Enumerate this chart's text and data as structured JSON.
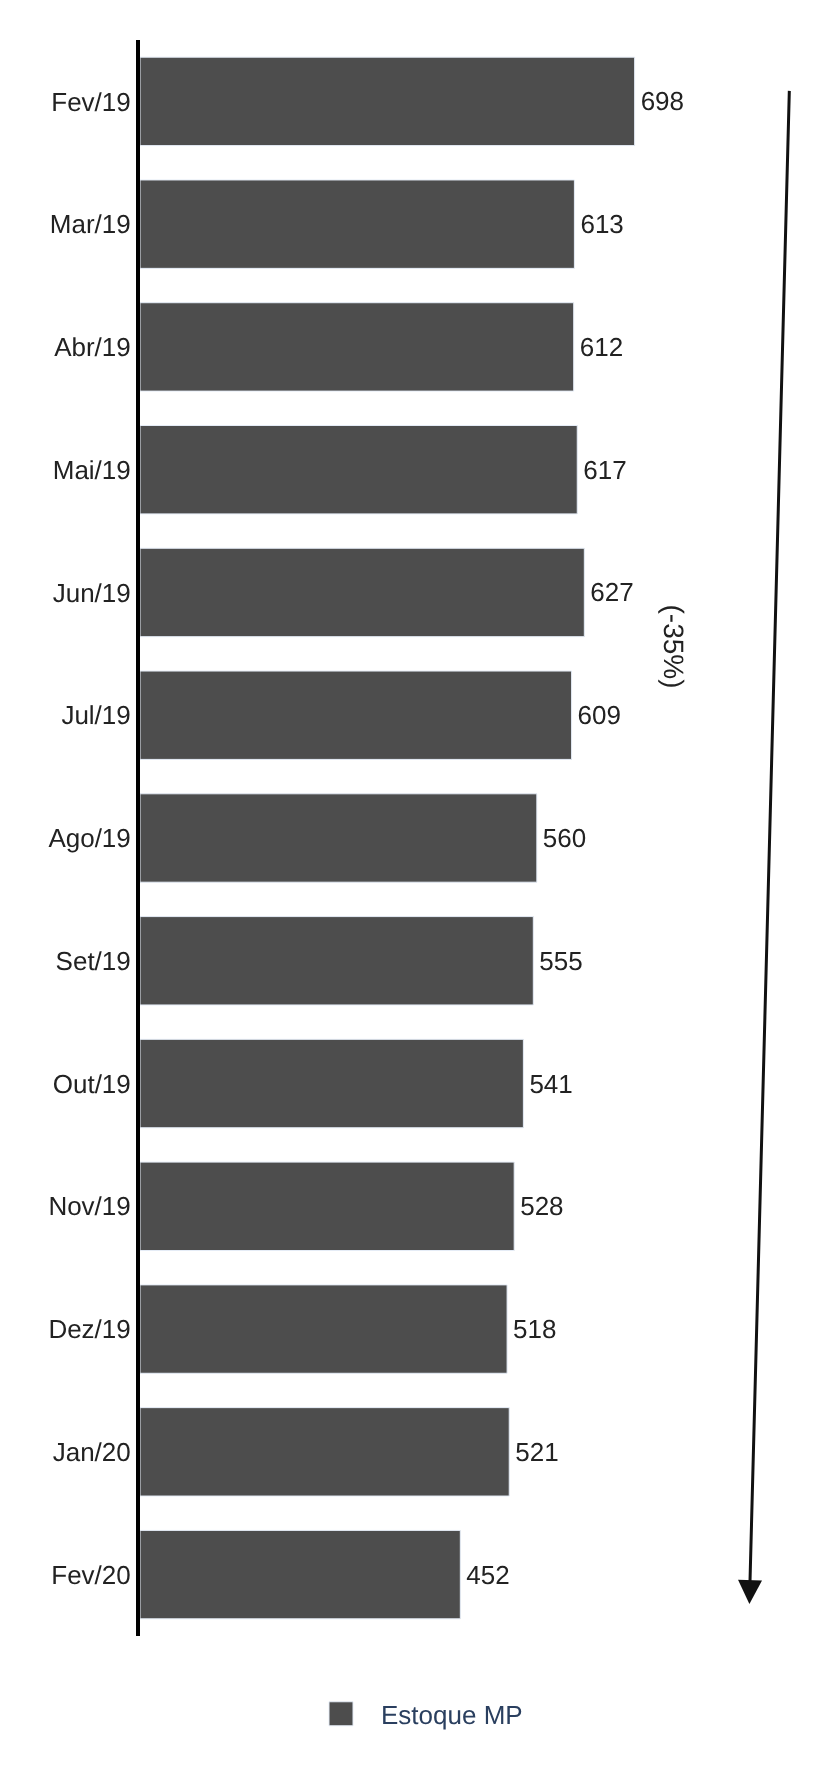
{
  "chart_data": {
    "type": "bar",
    "orientation": "horizontal",
    "categories": [
      "Fev/19",
      "Mar/19",
      "Abr/19",
      "Mai/19",
      "Jun/19",
      "Jul/19",
      "Ago/19",
      "Set/19",
      "Out/19",
      "Nov/19",
      "Dez/19",
      "Jan/20",
      "Fev/20"
    ],
    "series": [
      {
        "name": "Estoque MP",
        "color": "#4d4d4d",
        "values": [
          698,
          613,
          612,
          617,
          627,
          609,
          560,
          555,
          541,
          528,
          518,
          521,
          452
        ]
      }
    ],
    "data_labels": true,
    "annotations": [
      "(-35%)"
    ],
    "legend": "bottom"
  }
}
